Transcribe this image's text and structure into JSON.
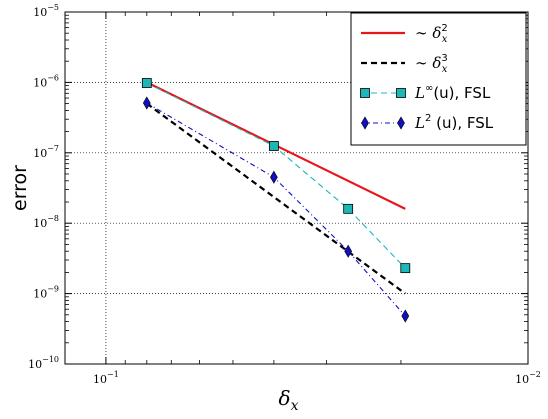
{
  "chart_data": {
    "type": "line",
    "title": "",
    "xlabel": "δx",
    "ylabel": "error",
    "x_scale": "log",
    "y_scale": "log",
    "x_reversed": true,
    "xlim": [
      0.125,
      0.01
    ],
    "ylim": [
      1e-10,
      1e-05
    ],
    "x_ticks": [
      {
        "value": 0.1,
        "base": "10",
        "exp": "−1"
      },
      {
        "value": 0.01,
        "base": "10",
        "exp": "−2"
      }
    ],
    "y_ticks": [
      {
        "value": 1e-10,
        "base": "10",
        "exp": "−10"
      },
      {
        "value": 1e-09,
        "base": "10",
        "exp": "−9"
      },
      {
        "value": 1e-08,
        "base": "10",
        "exp": "−8"
      },
      {
        "value": 1e-07,
        "base": "10",
        "exp": "−7"
      },
      {
        "value": 1e-06,
        "base": "10",
        "exp": "−6"
      },
      {
        "value": 1e-05,
        "base": "10",
        "exp": "−5"
      }
    ],
    "grid": true,
    "legend_position": "top-right",
    "series": [
      {
        "name": "~ δx²",
        "legend_main": "∼ δ",
        "legend_sup": "2",
        "legend_sub": "x",
        "color": "#e8161b",
        "style": "solid",
        "marker": "none",
        "x": [
          0.08,
          0.01953
        ],
        "y": [
          1e-06,
          1.6e-08
        ]
      },
      {
        "name": "~ δx³",
        "legend_main": "∼ δ",
        "legend_sup": "3",
        "legend_sub": "x",
        "color": "#000000",
        "style": "dashed",
        "marker": "none",
        "x": [
          0.08,
          0.01953
        ],
        "y": [
          5e-07,
          1e-09
        ]
      },
      {
        "name": "L∞(u), FSL",
        "legend_main": "L",
        "legend_sup": "∞",
        "legend_tail": "(u), FSL",
        "color": "#1cb8b8",
        "style": "dashed",
        "marker": "square",
        "x": [
          0.08,
          0.04,
          0.02667,
          0.01953
        ],
        "y": [
          9.8e-07,
          1.25e-07,
          1.6e-08,
          2.3e-09
        ]
      },
      {
        "name": "L2(u), FSL",
        "legend_main": "L",
        "legend_sup": "2",
        "legend_tail": " (u), FSL",
        "color": "#1010c0",
        "style": "dashdot",
        "marker": "diamond",
        "x": [
          0.08,
          0.04,
          0.02667,
          0.01953
        ],
        "y": [
          5.1e-07,
          4.5e-08,
          4e-09,
          4.8e-10
        ]
      }
    ]
  }
}
